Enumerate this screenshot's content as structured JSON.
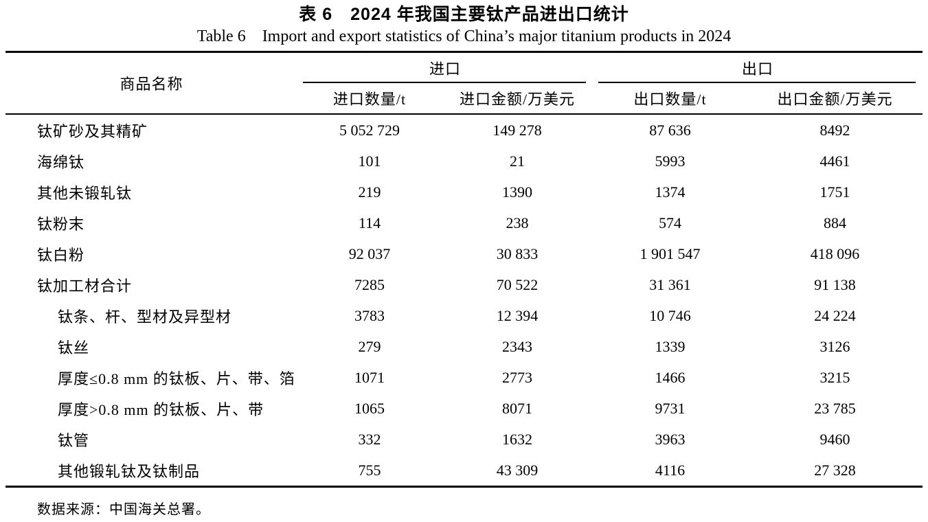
{
  "title_zh": "表 6　2024 年我国主要钛产品进出口统计",
  "title_en": "Table 6　Import and export statistics of China’s major titanium products in 2024",
  "table": {
    "col_product": "商品名称",
    "group_import": "进口",
    "group_export": "出口",
    "subheaders": [
      "进口数量/t",
      "进口金额/万美元",
      "出口数量/t",
      "出口金额/万美元"
    ],
    "rows": [
      {
        "name": "钛矿砂及其精矿",
        "indent": false,
        "values": [
          "5 052 729",
          "149 278",
          "87 636",
          "8492"
        ]
      },
      {
        "name": "海绵钛",
        "indent": false,
        "values": [
          "101",
          "21",
          "5993",
          "4461"
        ]
      },
      {
        "name": "其他未锻轧钛",
        "indent": false,
        "values": [
          "219",
          "1390",
          "1374",
          "1751"
        ]
      },
      {
        "name": "钛粉末",
        "indent": false,
        "values": [
          "114",
          "238",
          "574",
          "884"
        ]
      },
      {
        "name": "钛白粉",
        "indent": false,
        "values": [
          "92 037",
          "30 833",
          "1 901 547",
          "418 096"
        ]
      },
      {
        "name": "钛加工材合计",
        "indent": false,
        "values": [
          "7285",
          "70 522",
          "31 361",
          "91 138"
        ]
      },
      {
        "name": "钛条、杆、型材及异型材",
        "indent": true,
        "values": [
          "3783",
          "12 394",
          "10 746",
          "24 224"
        ]
      },
      {
        "name": "钛丝",
        "indent": true,
        "values": [
          "279",
          "2343",
          "1339",
          "3126"
        ]
      },
      {
        "name": "厚度≤0.8 mm 的钛板、片、带、箔",
        "indent": true,
        "values": [
          "1071",
          "2773",
          "1466",
          "3215"
        ]
      },
      {
        "name": "厚度>0.8 mm 的钛板、片、带",
        "indent": true,
        "values": [
          "1065",
          "8071",
          "9731",
          "23 785"
        ]
      },
      {
        "name": "钛管",
        "indent": true,
        "values": [
          "332",
          "1632",
          "3963",
          "9460"
        ]
      },
      {
        "name": "其他锻轧钛及钛制品",
        "indent": true,
        "values": [
          "755",
          "43 309",
          "4116",
          "27 328"
        ]
      }
    ],
    "source_note": "数据来源：中国海关总署。"
  }
}
